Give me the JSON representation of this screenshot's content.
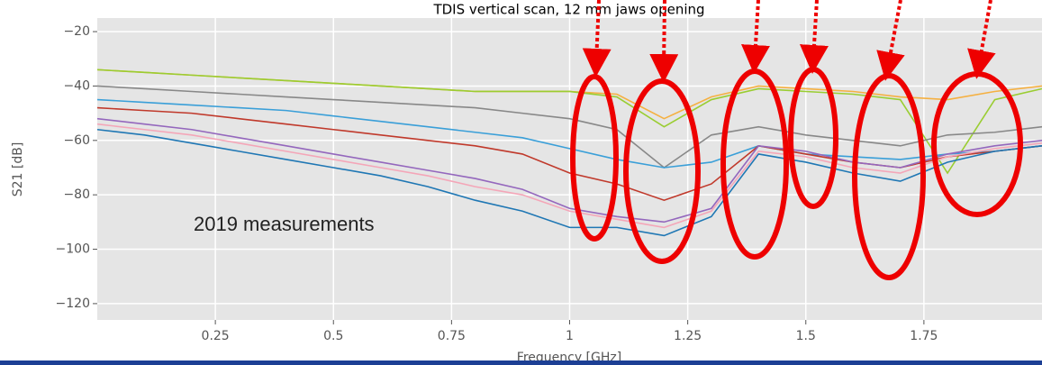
{
  "chart_data": {
    "type": "line",
    "title": "TDIS vertical scan, 12 mm jaws opening",
    "xlabel": "Frequency [GHz]",
    "ylabel": "S21 [dB]",
    "annotation": "2019 measurements",
    "x": [
      0.0,
      0.1,
      0.2,
      0.3,
      0.4,
      0.5,
      0.6,
      0.7,
      0.8,
      0.9,
      1.0,
      1.1,
      1.2,
      1.3,
      1.4,
      1.5,
      1.6,
      1.7,
      1.8,
      1.9,
      2.0
    ],
    "xlim": [
      0,
      2.0
    ],
    "xticks": [
      0.25,
      0.5,
      0.75,
      1,
      1.25,
      1.5,
      1.75
    ],
    "ylim": [
      -126,
      -15
    ],
    "yticks": [
      {
        "value": -20,
        "label": "−20"
      },
      {
        "value": -40,
        "label": "−40"
      },
      {
        "value": -60,
        "label": "−60"
      },
      {
        "value": -80,
        "label": "−80"
      },
      {
        "value": -100,
        "label": "−100"
      },
      {
        "value": -120,
        "label": "−120"
      }
    ],
    "grid": true,
    "series": [
      {
        "color": "#f5b041",
        "values": [
          -34,
          -35,
          -36,
          -37,
          -38,
          -39,
          -40,
          -41,
          -42,
          -42,
          -42,
          -43,
          -52,
          -44,
          -40,
          -41,
          -42,
          -44,
          -45,
          -42,
          -40
        ]
      },
      {
        "color": "#9acd32",
        "values": [
          -34,
          -35,
          -36,
          -37,
          -38,
          -39,
          -40,
          -41,
          -42,
          -42,
          -42,
          -44,
          -55,
          -45,
          -41,
          -42,
          -43,
          -45,
          -72,
          -45,
          -41
        ]
      },
      {
        "color": "#888888",
        "values": [
          -40,
          -41,
          -42,
          -43,
          -44,
          -45,
          -46,
          -47,
          -48,
          -50,
          -52,
          -56,
          -70,
          -58,
          -55,
          -58,
          -60,
          -62,
          -58,
          -57,
          -55
        ]
      },
      {
        "color": "#3a9fd8",
        "values": [
          -45,
          -46,
          -47,
          -48,
          -49,
          -51,
          -53,
          -55,
          -57,
          -59,
          -63,
          -67,
          -70,
          -68,
          -62,
          -65,
          -66,
          -67,
          -65,
          -64,
          -62
        ]
      },
      {
        "color": "#c0392b",
        "values": [
          -48,
          -49,
          -50,
          -52,
          -54,
          -56,
          -58,
          -60,
          -62,
          -65,
          -72,
          -76,
          -82,
          -76,
          -62,
          -65,
          -68,
          -70,
          -66,
          -64,
          -62
        ]
      },
      {
        "color": "#9467bd",
        "values": [
          -52,
          -54,
          -56,
          -59,
          -62,
          -65,
          -68,
          -71,
          -74,
          -78,
          -85,
          -88,
          -90,
          -85,
          -62,
          -64,
          -68,
          -70,
          -65,
          -62,
          -60
        ]
      },
      {
        "color": "#f4a6b8",
        "values": [
          -54,
          -56,
          -58,
          -61,
          -64,
          -67,
          -70,
          -73,
          -77,
          -80,
          -86,
          -89,
          -92,
          -86,
          -64,
          -66,
          -70,
          -72,
          -66,
          -63,
          -61
        ]
      },
      {
        "color": "#1f77b4",
        "values": [
          -56,
          -58,
          -61,
          -64,
          -67,
          -70,
          -73,
          -77,
          -82,
          -86,
          -92,
          -92,
          -95,
          -88,
          -65,
          -68,
          -72,
          -75,
          -68,
          -64,
          -62
        ]
      }
    ]
  }
}
